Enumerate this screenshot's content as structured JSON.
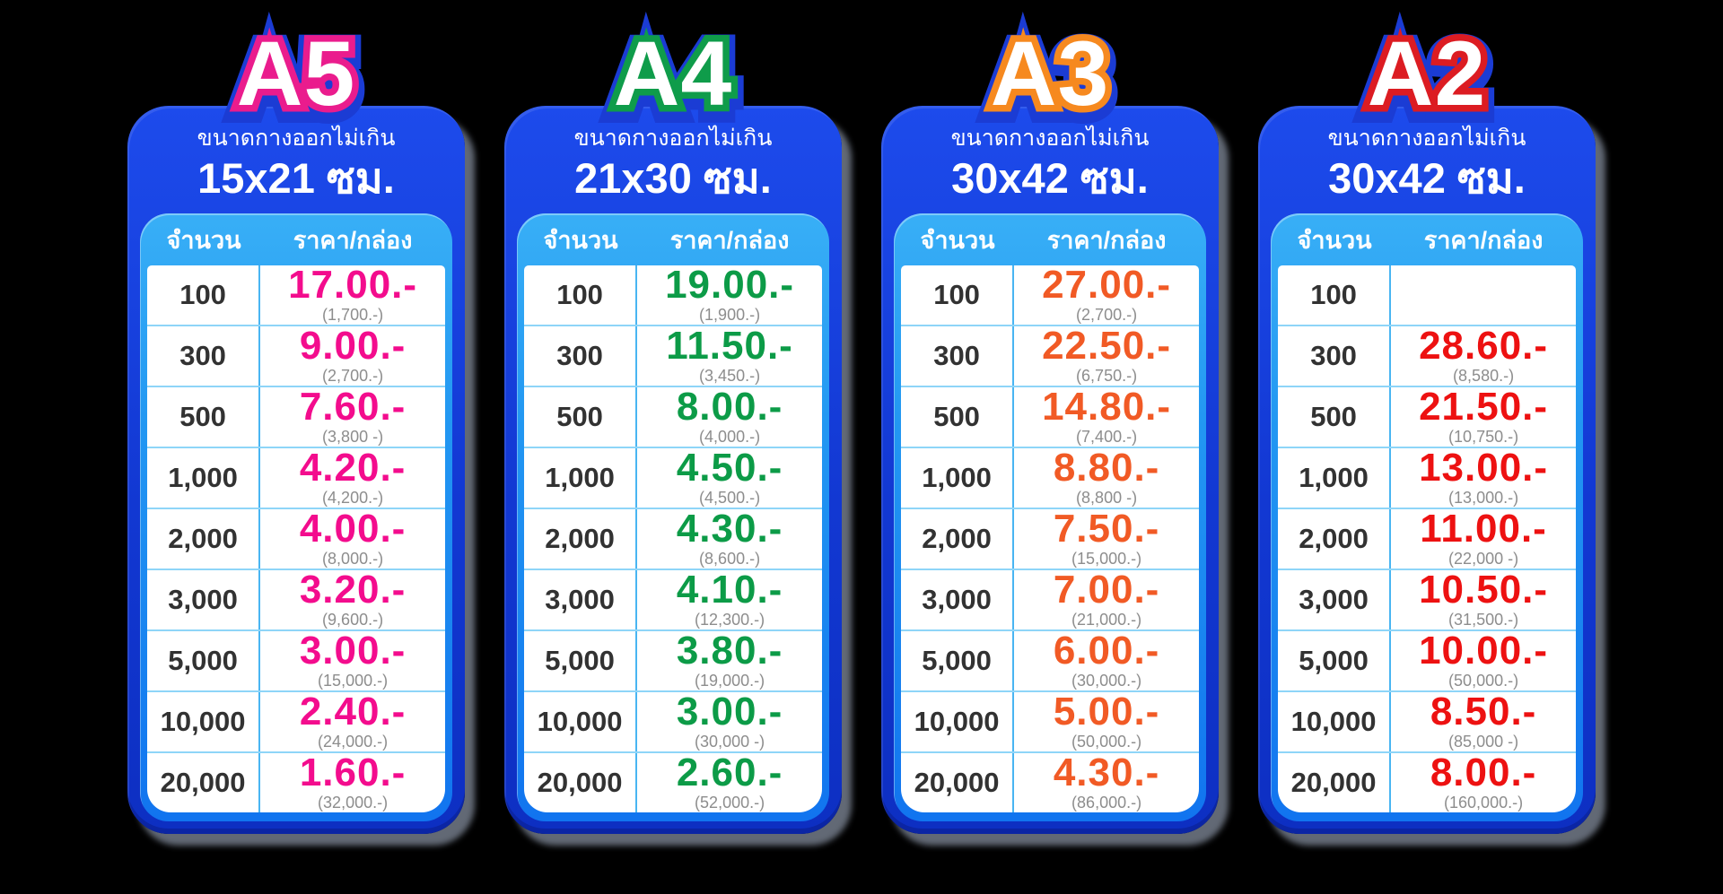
{
  "page": {
    "background": "#000000"
  },
  "table_header": {
    "qty": "จำนวน",
    "price": "ราคา/กล่อง"
  },
  "colors": {
    "card_blue": "#1238d2",
    "inner_blue": "#2297f2",
    "row_divider": "#8ed5f8",
    "qty_text": "#323232",
    "total_text": "#8d8d8d",
    "title_outer_stroke": "#1b3cd4"
  },
  "cards": [
    {
      "title": "A5",
      "outline_color": "#ea1c8d",
      "price_color": "#f30c8d",
      "subtitle": "ขนาดกางออกไม่เกิน",
      "size": "15x21 ซม.",
      "rows": [
        {
          "qty": "100",
          "price": "17.00.-",
          "total": "(1,700.-)"
        },
        {
          "qty": "300",
          "price": "9.00.-",
          "total": "(2,700.-)"
        },
        {
          "qty": "500",
          "price": "7.60.-",
          "total": "(3,800 -)"
        },
        {
          "qty": "1,000",
          "price": "4.20.-",
          "total": "(4,200.-)"
        },
        {
          "qty": "2,000",
          "price": "4.00.-",
          "total": "(8,000.-)"
        },
        {
          "qty": "3,000",
          "price": "3.20.-",
          "total": "(9,600.-)"
        },
        {
          "qty": "5,000",
          "price": "3.00.-",
          "total": "(15,000.-)"
        },
        {
          "qty": "10,000",
          "price": "2.40.-",
          "total": "(24,000.-)"
        },
        {
          "qty": "20,000",
          "price": "1.60.-",
          "total": "(32,000.-)"
        }
      ]
    },
    {
      "title": "A4",
      "outline_color": "#0f9c4a",
      "price_color": "#0c9b47",
      "subtitle": "ขนาดกางออกไม่เกิน",
      "size": "21x30 ซม.",
      "rows": [
        {
          "qty": "100",
          "price": "19.00.-",
          "total": "(1,900.-)"
        },
        {
          "qty": "300",
          "price": "11.50.-",
          "total": "(3,450.-)"
        },
        {
          "qty": "500",
          "price": "8.00.-",
          "total": "(4,000.-)"
        },
        {
          "qty": "1,000",
          "price": "4.50.-",
          "total": "(4,500.-)"
        },
        {
          "qty": "2,000",
          "price": "4.30.-",
          "total": "(8,600.-)"
        },
        {
          "qty": "3,000",
          "price": "4.10.-",
          "total": "(12,300.-)"
        },
        {
          "qty": "5,000",
          "price": "3.80.-",
          "total": "(19,000.-)"
        },
        {
          "qty": "10,000",
          "price": "3.00.-",
          "total": "(30,000 -)"
        },
        {
          "qty": "20,000",
          "price": "2.60.-",
          "total": "(52,000.-)"
        }
      ]
    },
    {
      "title": "A3",
      "outline_color": "#f6891f",
      "price_color": "#f15a25",
      "subtitle": "ขนาดกางออกไม่เกิน",
      "size": "30x42 ซม.",
      "rows": [
        {
          "qty": "100",
          "price": "27.00.-",
          "total": "(2,700.-)"
        },
        {
          "qty": "300",
          "price": "22.50.-",
          "total": "(6,750.-)"
        },
        {
          "qty": "500",
          "price": "14.80.-",
          "total": "(7,400.-)"
        },
        {
          "qty": "1,000",
          "price": "8.80.-",
          "total": "(8,800 -)"
        },
        {
          "qty": "2,000",
          "price": "7.50.-",
          "total": "(15,000.-)"
        },
        {
          "qty": "3,000",
          "price": "7.00.-",
          "total": "(21,000.-)"
        },
        {
          "qty": "5,000",
          "price": "6.00.-",
          "total": "(30,000.-)"
        },
        {
          "qty": "10,000",
          "price": "5.00.-",
          "total": "(50,000.-)"
        },
        {
          "qty": "20,000",
          "price": "4.30.-",
          "total": "(86,000.-)"
        }
      ]
    },
    {
      "title": "A2",
      "outline_color": "#dc1c22",
      "price_color": "#ed1111",
      "subtitle": "ขนาดกางออกไม่เกิน",
      "size": "30x42 ซม.",
      "rows": [
        {
          "qty": "100",
          "price": "",
          "total": ""
        },
        {
          "qty": "300",
          "price": "28.60.-",
          "total": "(8,580.-)"
        },
        {
          "qty": "500",
          "price": "21.50.-",
          "total": "(10,750.-)"
        },
        {
          "qty": "1,000",
          "price": "13.00.-",
          "total": "(13,000.-)"
        },
        {
          "qty": "2,000",
          "price": "11.00.-",
          "total": "(22,000 -)"
        },
        {
          "qty": "3,000",
          "price": "10.50.-",
          "total": "(31,500.-)"
        },
        {
          "qty": "5,000",
          "price": "10.00.-",
          "total": "(50,000.-)"
        },
        {
          "qty": "10,000",
          "price": "8.50.-",
          "total": "(85,000 -)"
        },
        {
          "qty": "20,000",
          "price": "8.00.-",
          "total": "(160,000.-)"
        }
      ]
    }
  ]
}
